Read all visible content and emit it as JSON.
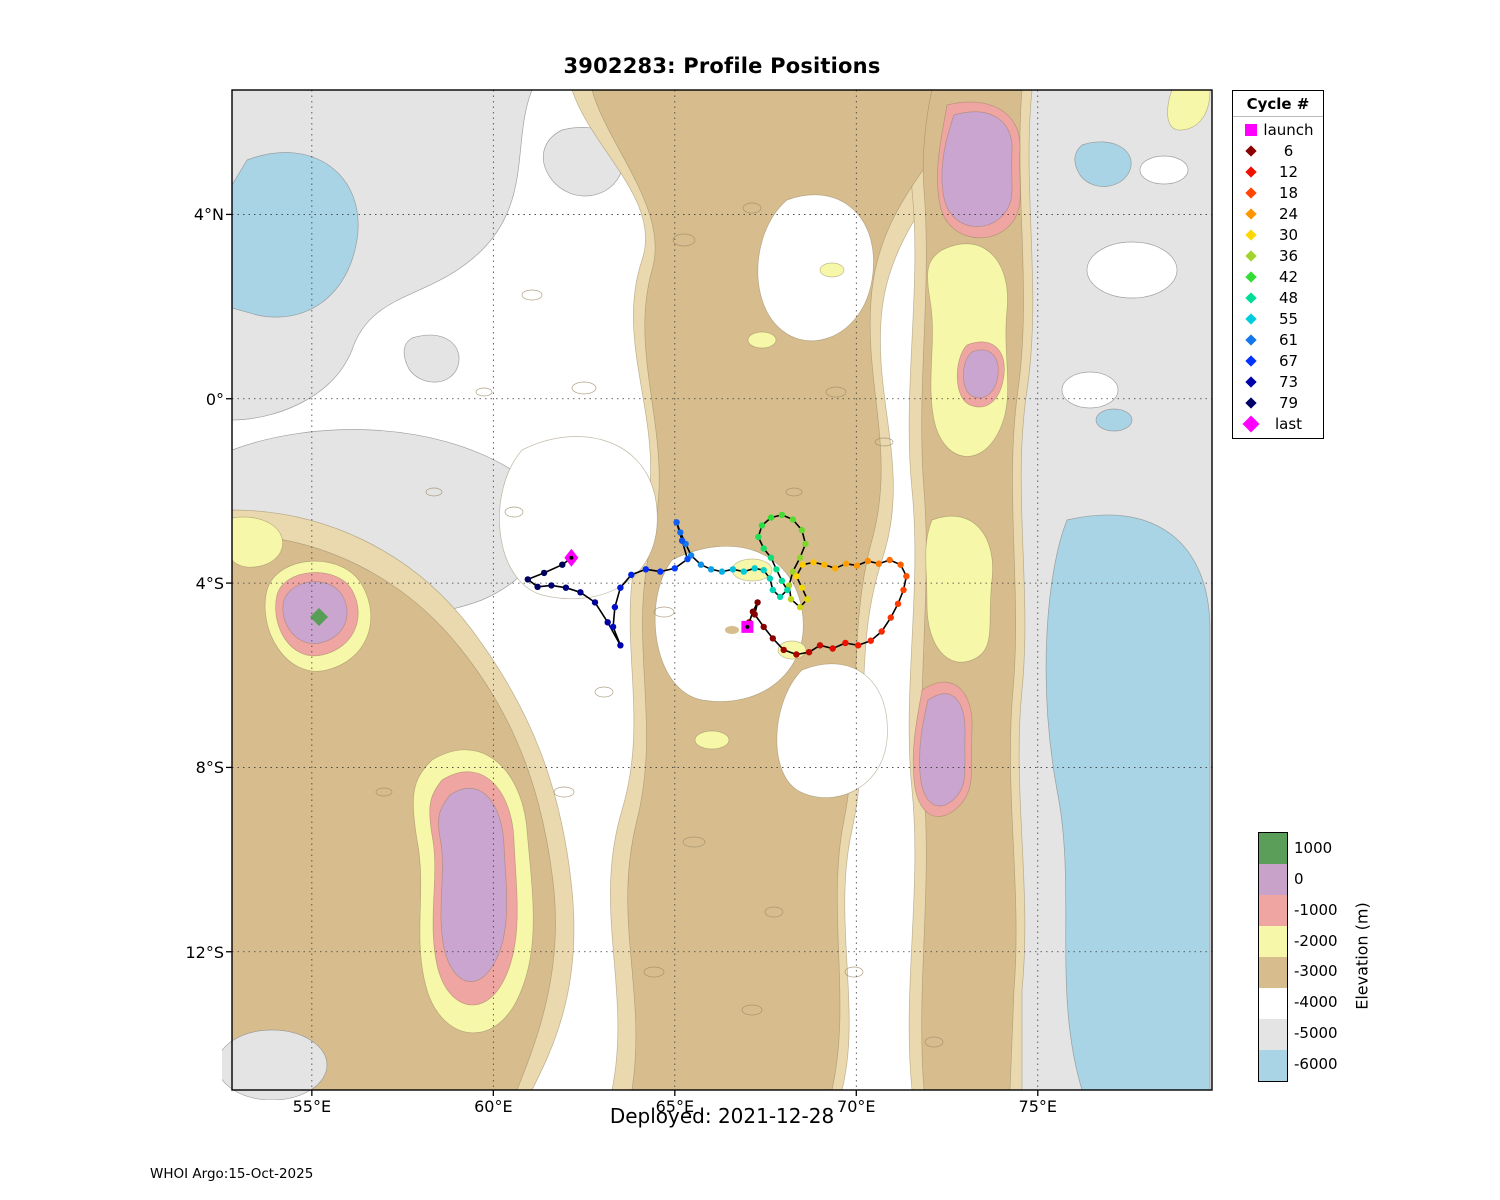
{
  "figure": {
    "title": "3902283: Profile Positions",
    "deployed_label": "Deployed: 2021-12-28",
    "credit": "WHOI Argo:15-Oct-2025"
  },
  "axes": {
    "x_ticks": [
      {
        "label": "55°E",
        "lon": 55
      },
      {
        "label": "60°E",
        "lon": 60
      },
      {
        "label": "65°E",
        "lon": 65
      },
      {
        "label": "70°E",
        "lon": 70
      },
      {
        "label": "75°E",
        "lon": 75
      }
    ],
    "y_ticks": [
      {
        "label": "4°N",
        "lat": 4
      },
      {
        "label": "0°",
        "lat": 0
      },
      {
        "label": "4°S",
        "lat": -4
      },
      {
        "label": "8°S",
        "lat": -8
      },
      {
        "label": "12°S",
        "lat": -12
      }
    ]
  },
  "legend": {
    "title": "Cycle #",
    "items": [
      {
        "label": "launch",
        "marker": "square",
        "color": "#ff00ff"
      },
      {
        "label": "6",
        "marker": "diamond",
        "cycle": 6
      },
      {
        "label": "12",
        "marker": "diamond",
        "cycle": 12
      },
      {
        "label": "18",
        "marker": "diamond",
        "cycle": 18
      },
      {
        "label": "24",
        "marker": "diamond",
        "cycle": 24
      },
      {
        "label": "30",
        "marker": "diamond",
        "cycle": 30
      },
      {
        "label": "36",
        "marker": "diamond",
        "cycle": 36
      },
      {
        "label": "42",
        "marker": "diamond",
        "cycle": 42
      },
      {
        "label": "48",
        "marker": "diamond",
        "cycle": 48
      },
      {
        "label": "55",
        "marker": "diamond",
        "cycle": 55
      },
      {
        "label": "61",
        "marker": "diamond",
        "cycle": 61
      },
      {
        "label": "67",
        "marker": "diamond",
        "cycle": 67
      },
      {
        "label": "73",
        "marker": "diamond",
        "cycle": 73
      },
      {
        "label": "79",
        "marker": "diamond",
        "cycle": 79
      },
      {
        "label": "last",
        "marker": "diamond-large",
        "color": "#ff00ff"
      }
    ]
  },
  "colorbar": {
    "title": "Elevation (m)",
    "labels": [
      "1000",
      "0",
      "-1000",
      "-2000",
      "-3000",
      "-4000",
      "-5000",
      "-6000"
    ],
    "colors": [
      "#5a9e5a",
      "#c8a2c8",
      "#efa5a2",
      "#f7f7a9",
      "#d7bd8e",
      "#ffffff",
      "#e4e4e4",
      "#a8d4e6"
    ]
  },
  "chart_data": {
    "type": "scatter",
    "title": "3902283: Profile Positions",
    "deployed": "2021-12-28",
    "lon_range": [
      52.8,
      79.8
    ],
    "lat_range": [
      6.7,
      -15.0
    ],
    "grid": "dotted",
    "background": "filled bathymetry contours, elevation in m",
    "launch": {
      "lon": 67.0,
      "lat": -4.95
    },
    "last": {
      "lon": 62.15,
      "lat": -3.45
    },
    "first_cycle": 1,
    "track": [
      [
        67.05,
        -4.85
      ],
      [
        67.15,
        -4.62
      ],
      [
        67.28,
        -4.42
      ],
      [
        67.2,
        -4.68
      ],
      [
        67.45,
        -4.95
      ],
      [
        67.7,
        -5.2
      ],
      [
        68.0,
        -5.45
      ],
      [
        68.35,
        -5.55
      ],
      [
        68.7,
        -5.5
      ],
      [
        69.0,
        -5.35
      ],
      [
        69.35,
        -5.42
      ],
      [
        69.7,
        -5.3
      ],
      [
        70.05,
        -5.35
      ],
      [
        70.4,
        -5.25
      ],
      [
        70.7,
        -5.05
      ],
      [
        70.95,
        -4.75
      ],
      [
        71.15,
        -4.45
      ],
      [
        71.3,
        -4.15
      ],
      [
        71.38,
        -3.85
      ],
      [
        71.22,
        -3.6
      ],
      [
        70.92,
        -3.5
      ],
      [
        70.62,
        -3.58
      ],
      [
        70.32,
        -3.52
      ],
      [
        70.02,
        -3.62
      ],
      [
        69.72,
        -3.58
      ],
      [
        69.42,
        -3.68
      ],
      [
        69.12,
        -3.6
      ],
      [
        68.82,
        -3.55
      ],
      [
        68.52,
        -3.6
      ],
      [
        68.35,
        -3.85
      ],
      [
        68.5,
        -4.1
      ],
      [
        68.65,
        -4.35
      ],
      [
        68.45,
        -4.52
      ],
      [
        68.2,
        -4.35
      ],
      [
        68.15,
        -4.05
      ],
      [
        68.25,
        -3.75
      ],
      [
        68.45,
        -3.45
      ],
      [
        68.6,
        -3.15
      ],
      [
        68.5,
        -2.85
      ],
      [
        68.25,
        -2.62
      ],
      [
        67.95,
        -2.52
      ],
      [
        67.65,
        -2.58
      ],
      [
        67.4,
        -2.75
      ],
      [
        67.3,
        -3.0
      ],
      [
        67.45,
        -3.25
      ],
      [
        67.65,
        -3.45
      ],
      [
        67.8,
        -3.7
      ],
      [
        67.95,
        -3.95
      ],
      [
        68.1,
        -4.15
      ],
      [
        67.9,
        -4.3
      ],
      [
        67.7,
        -4.15
      ],
      [
        67.62,
        -3.9
      ],
      [
        67.45,
        -3.72
      ],
      [
        67.2,
        -3.68
      ],
      [
        66.9,
        -3.75
      ],
      [
        66.6,
        -3.7
      ],
      [
        66.3,
        -3.75
      ],
      [
        66.0,
        -3.7
      ],
      [
        65.72,
        -3.6
      ],
      [
        65.45,
        -3.4
      ],
      [
        65.3,
        -3.15
      ],
      [
        65.15,
        -2.9
      ],
      [
        65.05,
        -2.68
      ],
      [
        65.2,
        -3.08
      ],
      [
        65.35,
        -3.48
      ],
      [
        65.0,
        -3.68
      ],
      [
        64.6,
        -3.75
      ],
      [
        64.2,
        -3.7
      ],
      [
        63.8,
        -3.82
      ],
      [
        63.5,
        -4.1
      ],
      [
        63.35,
        -4.52
      ],
      [
        63.3,
        -4.95
      ],
      [
        63.5,
        -5.35
      ],
      [
        63.15,
        -4.85
      ],
      [
        62.8,
        -4.42
      ],
      [
        62.4,
        -4.2
      ],
      [
        62.0,
        -4.1
      ],
      [
        61.6,
        -4.05
      ],
      [
        61.22,
        -4.08
      ],
      [
        60.95,
        -3.92
      ],
      [
        61.4,
        -3.78
      ],
      [
        61.9,
        -3.6
      ]
    ],
    "color_stops": [
      [
        1,
        "#780000"
      ],
      [
        6,
        "#8b0000"
      ],
      [
        12,
        "#ee1000"
      ],
      [
        18,
        "#ff4500"
      ],
      [
        24,
        "#ff9500"
      ],
      [
        30,
        "#ffd700"
      ],
      [
        36,
        "#9fd42c"
      ],
      [
        42,
        "#33dd33"
      ],
      [
        48,
        "#00dd99"
      ],
      [
        55,
        "#00ccdd"
      ],
      [
        61,
        "#1577ee"
      ],
      [
        67,
        "#0033ff"
      ],
      [
        73,
        "#0000aa"
      ],
      [
        79,
        "#000066"
      ],
      [
        82,
        "#000055"
      ]
    ],
    "marker_colors": {
      "launch": "#ff00ff",
      "last": "#ff00ff",
      "line": "#000000"
    }
  }
}
